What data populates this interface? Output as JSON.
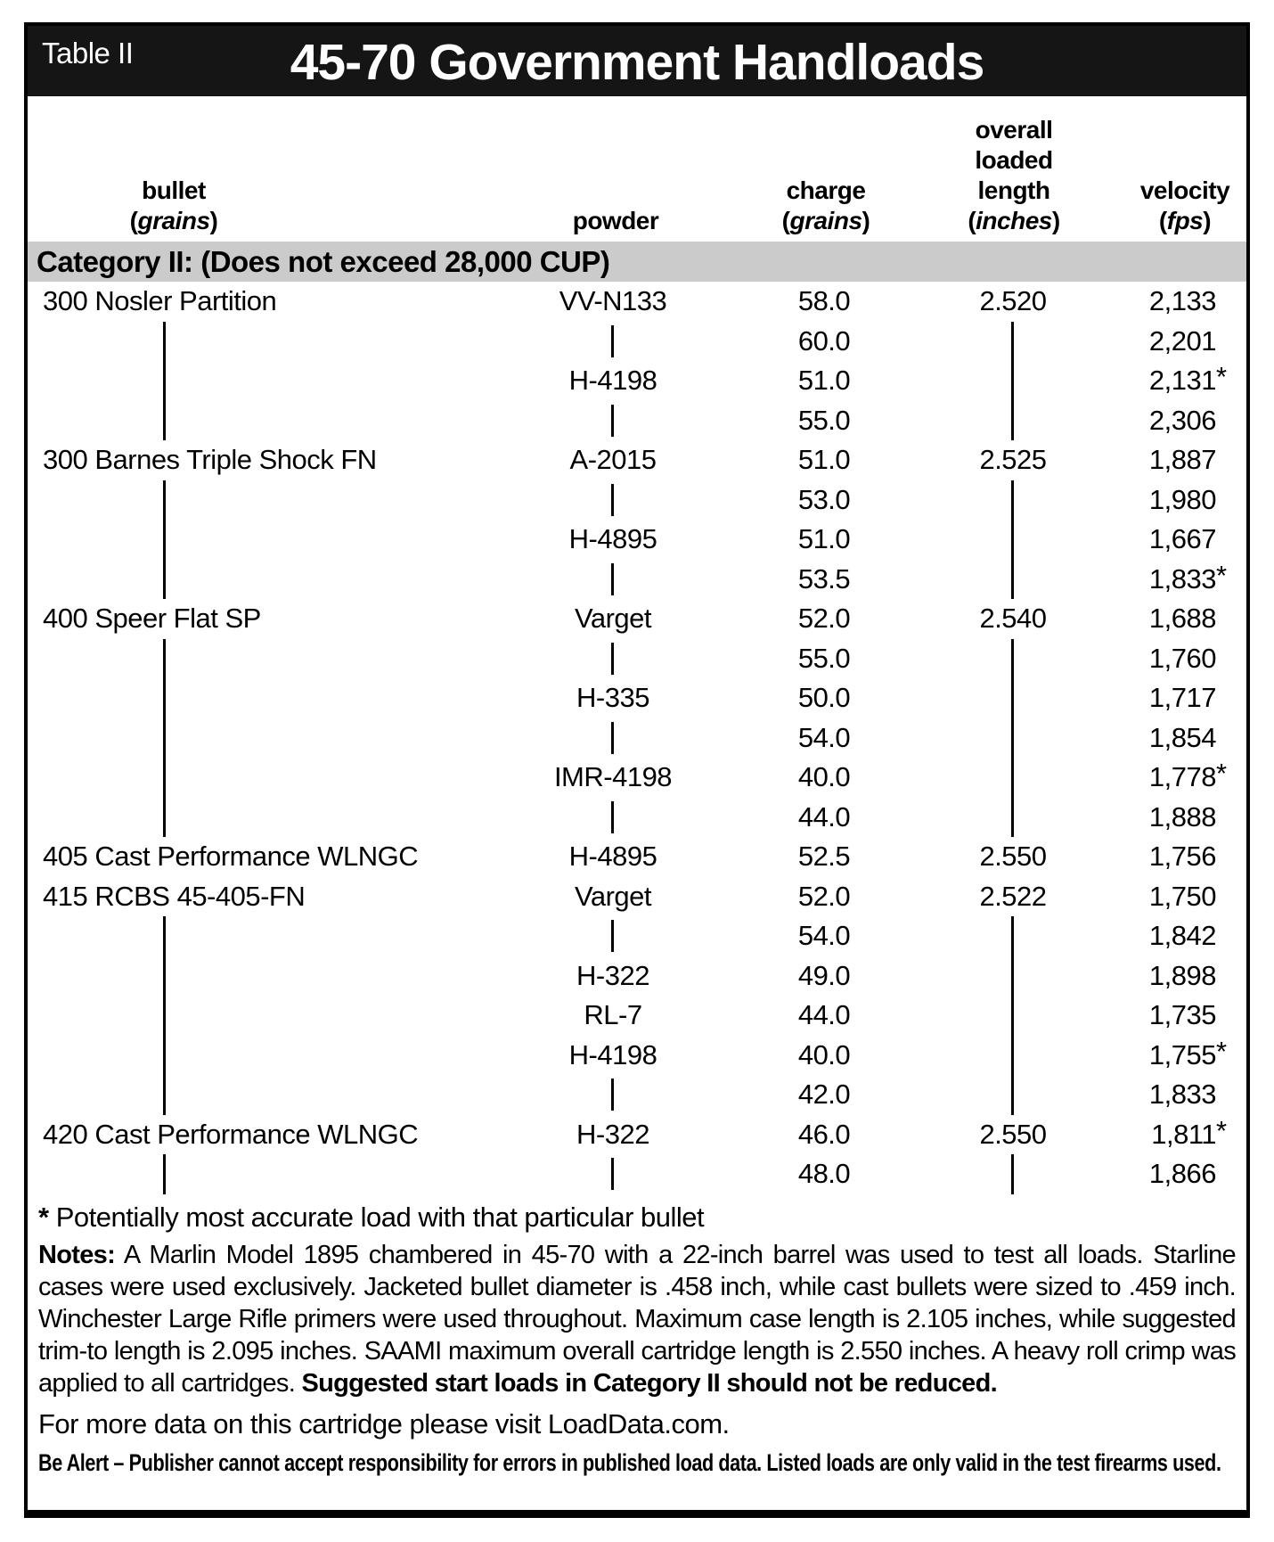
{
  "colors": {
    "title_bar_bg": "#151515",
    "title_bar_text": "#ffffff",
    "category_bg": "#cbcbcb",
    "text": "#000000",
    "page_bg": "#ffffff"
  },
  "table": {
    "label": "Table II",
    "title": "45-70 Government Handloads",
    "columns": [
      {
        "id": "bullet",
        "lines": [
          "bullet",
          "(grains)"
        ]
      },
      {
        "id": "powder",
        "lines": [
          "powder"
        ]
      },
      {
        "id": "charge",
        "lines": [
          "charge",
          "(grains)"
        ]
      },
      {
        "id": "oal",
        "lines": [
          "overall",
          "loaded",
          "length",
          "(inches)"
        ]
      },
      {
        "id": "velocity",
        "lines": [
          "velocity",
          "(fps)"
        ]
      }
    ],
    "category_header": "Category II: (Does not exceed 28,000 CUP)",
    "rows": [
      {
        "bullet": "300 Nosler Partition",
        "powder": "VV-N133",
        "charge": "58.0",
        "oal": "2.520",
        "velocity": "2,133",
        "star": false
      },
      {
        "bullet": null,
        "powder": null,
        "charge": "60.0",
        "oal": null,
        "velocity": "2,201",
        "star": false
      },
      {
        "bullet": null,
        "powder": "H-4198",
        "charge": "51.0",
        "oal": null,
        "velocity": "2,131",
        "star": true
      },
      {
        "bullet": null,
        "powder": null,
        "charge": "55.0",
        "oal": null,
        "velocity": "2,306",
        "star": false
      },
      {
        "bullet": "300 Barnes Triple Shock FN",
        "powder": "A-2015",
        "charge": "51.0",
        "oal": "2.525",
        "velocity": "1,887",
        "star": false
      },
      {
        "bullet": null,
        "powder": null,
        "charge": "53.0",
        "oal": null,
        "velocity": "1,980",
        "star": false
      },
      {
        "bullet": null,
        "powder": "H-4895",
        "charge": "51.0",
        "oal": null,
        "velocity": "1,667",
        "star": false
      },
      {
        "bullet": null,
        "powder": null,
        "charge": "53.5",
        "oal": null,
        "velocity": "1,833",
        "star": true
      },
      {
        "bullet": "400 Speer Flat SP",
        "powder": "Varget",
        "charge": "52.0",
        "oal": "2.540",
        "velocity": "1,688",
        "star": false
      },
      {
        "bullet": null,
        "powder": null,
        "charge": "55.0",
        "oal": null,
        "velocity": "1,760",
        "star": false
      },
      {
        "bullet": null,
        "powder": "H-335",
        "charge": "50.0",
        "oal": null,
        "velocity": "1,717",
        "star": false
      },
      {
        "bullet": null,
        "powder": null,
        "charge": "54.0",
        "oal": null,
        "velocity": "1,854",
        "star": false
      },
      {
        "bullet": null,
        "powder": "IMR-4198",
        "charge": "40.0",
        "oal": null,
        "velocity": "1,778",
        "star": true
      },
      {
        "bullet": null,
        "powder": null,
        "charge": "44.0",
        "oal": null,
        "velocity": "1,888",
        "star": false
      },
      {
        "bullet": "405 Cast Performance WLNGC",
        "powder": "H-4895",
        "charge": "52.5",
        "oal": "2.550",
        "velocity": "1,756",
        "star": false
      },
      {
        "bullet": "415 RCBS 45-405-FN",
        "powder": "Varget",
        "charge": "52.0",
        "oal": "2.522",
        "velocity": "1,750",
        "star": false
      },
      {
        "bullet": null,
        "powder": null,
        "charge": "54.0",
        "oal": null,
        "velocity": "1,842",
        "star": false
      },
      {
        "bullet": null,
        "powder": "H-322",
        "charge": "49.0",
        "oal": null,
        "velocity": "1,898",
        "star": false
      },
      {
        "bullet": null,
        "powder": "RL-7",
        "charge": "44.0",
        "oal": null,
        "velocity": "1,735",
        "star": false
      },
      {
        "bullet": null,
        "powder": "H-4198",
        "charge": "40.0",
        "oal": null,
        "velocity": "1,755",
        "star": true
      },
      {
        "bullet": null,
        "powder": null,
        "charge": "42.0",
        "oal": null,
        "velocity": "1,833",
        "star": false
      },
      {
        "bullet": "420 Cast Performance WLNGC",
        "powder": "H-322",
        "charge": "46.0",
        "oal": "2.550",
        "velocity": "1,811",
        "star": true
      },
      {
        "bullet": null,
        "powder": null,
        "charge": "48.0",
        "oal": null,
        "velocity": "1,866",
        "star": false
      }
    ]
  },
  "footer": {
    "footnote_symbol": "*",
    "footnote_text": "Potentially most accurate load with that particular bullet",
    "notes_label": "Notes:",
    "notes_body": "A Marlin Model 1895 chambered in 45-70 with a 22-inch barrel was used to test all loads. Starline cases were used exclusively. Jacketed bullet diameter is .458 inch, while cast bullets were sized to .459 inch. Winchester Large Rifle primers were used throughout. Maximum case length is 2.105 inches, while suggested trim-to length is 2.095 inches. SAAMI maximum overall cartridge length is 2.550 inches. A heavy roll crimp was applied to all cartridges.",
    "notes_bold": "Suggested start loads in Category II should not be reduced.",
    "more_data": "For more data on this cartridge please visit LoadData.com.",
    "alert": "Be Alert – Publisher cannot accept responsibility for errors in published load data. Listed loads are only valid in the test firearms used."
  }
}
